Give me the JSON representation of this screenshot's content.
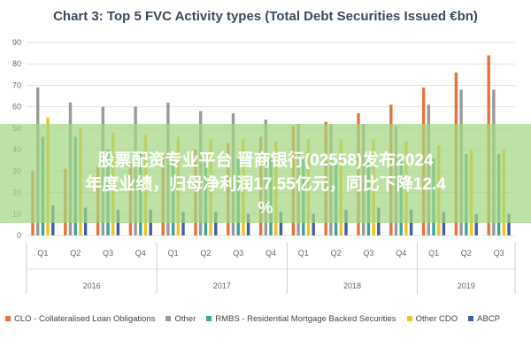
{
  "chart_data": {
    "type": "bar",
    "title": "Chart 3: Top 5 FVC Activity types (Total Debt Securities Issued €bn)",
    "categories": [
      "Q1",
      "Q2",
      "Q3",
      "Q4",
      "Q1",
      "Q2",
      "Q3",
      "Q4",
      "Q1",
      "Q2",
      "Q3",
      "Q4",
      "Q1",
      "Q2",
      "Q3"
    ],
    "years": [
      {
        "label": "2016",
        "count": 4
      },
      {
        "label": "2017",
        "count": 4
      },
      {
        "label": "2018",
        "count": 4
      },
      {
        "label": "2019",
        "count": 3
      }
    ],
    "ylim": [
      0,
      90
    ],
    "yticks": [
      0,
      10,
      20,
      30,
      40,
      50,
      60,
      70,
      80,
      90
    ],
    "grid": true,
    "legend_position": "bottom",
    "series": [
      {
        "name": "CLO - Collateralised Loan Obligations",
        "color": "#e8733a",
        "values": [
          30,
          31,
          32,
          34,
          38,
          40,
          43,
          46,
          51,
          53,
          57,
          61,
          69,
          76,
          84
        ]
      },
      {
        "name": "Other",
        "color": "#9a9a9a",
        "values": [
          69,
          62,
          60,
          60,
          62,
          58,
          57,
          54,
          52,
          52,
          52,
          51,
          61,
          68,
          68
        ]
      },
      {
        "name": "RMBS - Residential Mortgage Backed Securities",
        "color": "#3aa39a",
        "values": [
          46,
          46,
          40,
          38,
          36,
          36,
          36,
          36,
          36,
          34,
          34,
          36,
          36,
          38,
          38
        ]
      },
      {
        "name": "Other CDO",
        "color": "#f2c31a",
        "values": [
          55,
          50,
          48,
          47,
          46,
          45,
          45,
          44,
          45,
          45,
          45,
          44,
          42,
          40,
          40
        ]
      },
      {
        "name": "ABCP",
        "color": "#3e5fa8",
        "values": [
          14,
          13,
          12,
          12,
          11,
          11,
          10,
          11,
          10,
          12,
          13,
          12,
          11,
          10,
          10
        ]
      }
    ]
  },
  "overlay": {
    "line1": "股票配资专业平台 晋商银行(02558)发布2024",
    "line2": "年度业绩，归母净利润17.55亿元，同比下降12.4",
    "line3": "%"
  }
}
